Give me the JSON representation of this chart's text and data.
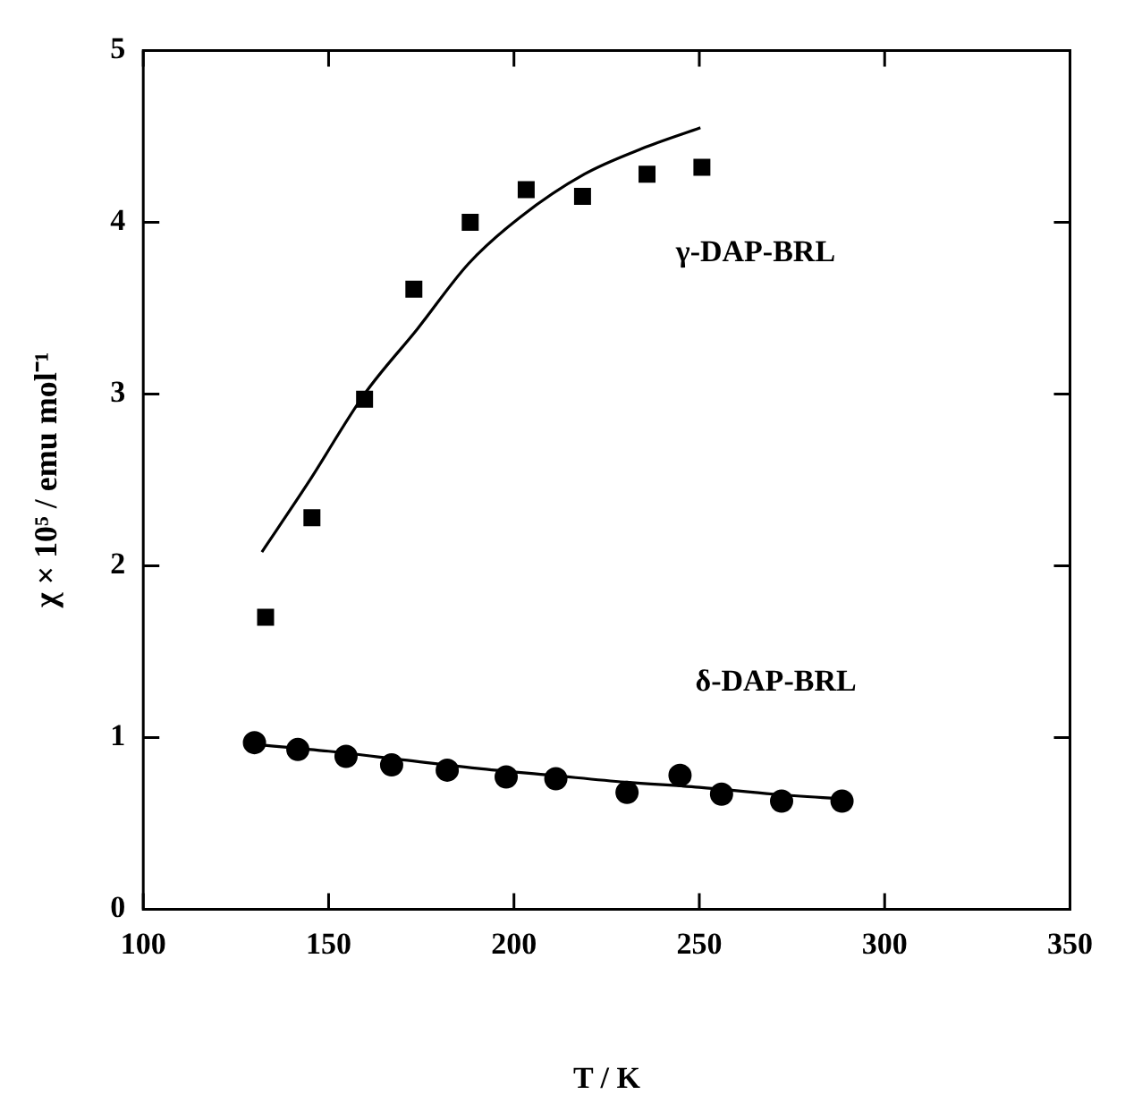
{
  "chart_data": {
    "type": "scatter",
    "xlabel": "T / K",
    "ylabel": "χ × 10⁵ / emu mol⁻¹",
    "xlim": [
      100,
      350
    ],
    "xticks": [
      100,
      150,
      200,
      250,
      300,
      350
    ],
    "ylim": [
      0,
      5
    ],
    "yticks": [
      0,
      1,
      2,
      3,
      4,
      5
    ],
    "grid": false,
    "legend": false,
    "series": [
      {
        "name": "γ-DAP-BRL",
        "marker": "square",
        "color": "#000000",
        "x": [
          133,
          145.5,
          159.7,
          173,
          188.2,
          203.3,
          218.5,
          235.9,
          250.7
        ],
        "values": [
          1.7,
          2.28,
          2.97,
          3.61,
          4.0,
          4.19,
          4.15,
          4.28,
          4.32
        ]
      },
      {
        "type": "line",
        "marker": "none",
        "color": "#000000",
        "x": [
          132,
          144.4,
          159.7,
          174,
          187.8,
          201.7,
          219,
          234.7,
          250.3
        ],
        "values": [
          2.08,
          2.48,
          3.0,
          3.38,
          3.76,
          4.03,
          4.28,
          4.43,
          4.55
        ]
      },
      {
        "name": "δ-DAP-BRL",
        "marker": "circle",
        "color": "#000000",
        "x": [
          130,
          141.7,
          154.7,
          167,
          182,
          197.9,
          211.3,
          230.5,
          244.8,
          256,
          272.2,
          288.5
        ],
        "values": [
          0.97,
          0.93,
          0.89,
          0.84,
          0.81,
          0.77,
          0.76,
          0.68,
          0.78,
          0.67,
          0.63,
          0.63
        ]
      },
      {
        "type": "line",
        "marker": "none",
        "color": "#000000",
        "x": [
          130,
          150,
          170,
          190,
          210,
          230,
          250,
          270,
          290
        ],
        "values": [
          0.96,
          0.92,
          0.87,
          0.82,
          0.78,
          0.74,
          0.71,
          0.67,
          0.64
        ]
      }
    ]
  }
}
